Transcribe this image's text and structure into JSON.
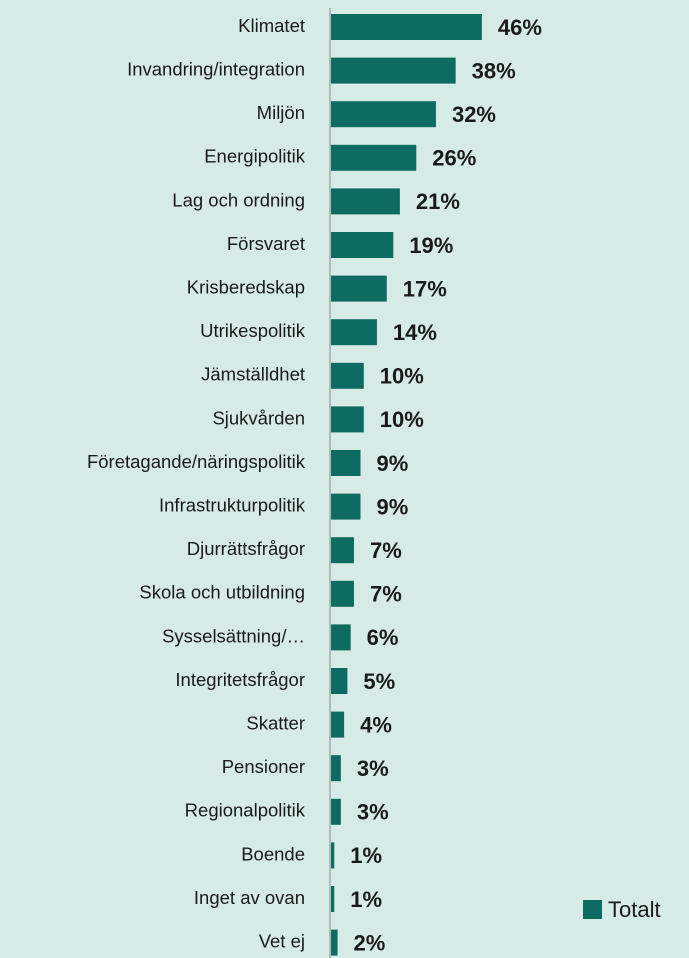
{
  "chart_data": {
    "type": "bar",
    "orientation": "horizontal",
    "categories": [
      "Klimatet",
      "Invandring/integration",
      "Miljön",
      "Energipolitik",
      "Lag och ordning",
      "Försvaret",
      "Krisberedskap",
      "Utrikespolitik",
      "Jämställdhet",
      "Sjukvården",
      "Företagande/näringspolitik",
      "Infrastrukturpolitik",
      "Djurrättsfrågor",
      "Skola och utbildning",
      "Sysselsättning/…",
      "Integritetsfrågor",
      "Skatter",
      "Pensioner",
      "Regionalpolitik",
      "Boende",
      "Inget av ovan",
      "Vet ej"
    ],
    "series": [
      {
        "name": "Totalt",
        "color": "#0e6b62",
        "values": [
          46,
          38,
          32,
          26,
          21,
          19,
          17,
          14,
          10,
          10,
          9,
          9,
          7,
          7,
          6,
          5,
          4,
          3,
          3,
          1,
          1,
          2
        ],
        "value_labels": [
          "46%",
          "38%",
          "32%",
          "26%",
          "21%",
          "19%",
          "17%",
          "14%",
          "10%",
          "10%",
          "9%",
          "9%",
          "7%",
          "7%",
          "6%",
          "5%",
          "4%",
          "3%",
          "3%",
          "1%",
          "1%",
          "2%"
        ]
      }
    ],
    "legend": "bottom-right"
  }
}
